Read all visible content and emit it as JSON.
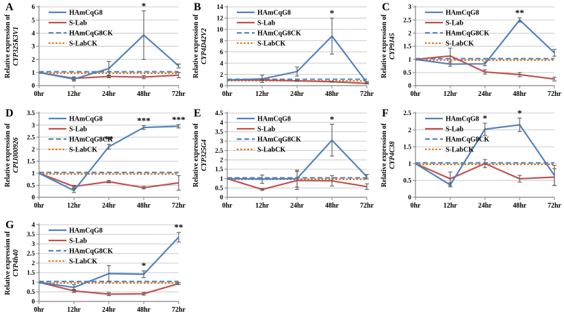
{
  "figure": {
    "categories": [
      "0hr",
      "12hr",
      "24hr",
      "48hr",
      "72hr"
    ],
    "ylabel_prefix": "Relative expression of",
    "legend": [
      {
        "label": "HAmCqG8",
        "color": "#4f81bd",
        "dash": "solid"
      },
      {
        "label": "S-Lab",
        "color": "#c0504d",
        "dash": "solid"
      },
      {
        "label": "HAmCqG8CK",
        "color": "#4f81bd",
        "dash": "dashed"
      },
      {
        "label": "S-LabCK",
        "color": "#e36c0a",
        "dash": "dotted"
      }
    ],
    "colors": {
      "resistant_line": "#4f81bd",
      "susceptible_line": "#c0504d",
      "control_dotted": "#e36c0a",
      "error_bar": "#595959",
      "grid": "#c9c9c9",
      "axis": "#808080",
      "text": "#000000"
    }
  },
  "chart_data": [
    {
      "type": "line",
      "panel": "A",
      "gene": "CYP325K3V1",
      "ylabel": "Relative expression of CYP325K3V1",
      "xlabel": "",
      "ylim": [
        0,
        6
      ],
      "ystep": 1,
      "grid": true,
      "legend_position": "top-left inside",
      "series": [
        {
          "name": "HAmCqG8",
          "values": [
            1,
            0.5,
            1.3,
            3.85,
            1.5
          ],
          "errors": [
            0,
            0.15,
            0.55,
            1.85,
            0.15
          ],
          "sig": [
            "",
            "",
            "",
            "*",
            ""
          ]
        },
        {
          "name": "S-Lab",
          "values": [
            1,
            0.55,
            0.7,
            0.65,
            0.8
          ],
          "errors": [
            0,
            0.12,
            0.1,
            0.12,
            0.2
          ],
          "sig": [
            "",
            "",
            "",
            "",
            ""
          ]
        },
        {
          "name": "HAmCqG8CK",
          "constant": 1
        },
        {
          "name": "S-LabCK",
          "constant": 1
        }
      ]
    },
    {
      "type": "line",
      "panel": "B",
      "gene": "CYP4D42V2",
      "ylabel": "Relative expression of CYP4D42V2",
      "xlabel": "",
      "ylim": [
        0,
        14
      ],
      "ystep": 2,
      "grid": true,
      "legend_position": "top-left inside",
      "series": [
        {
          "name": "HAmCqG8",
          "values": [
            1,
            1.2,
            2.5,
            8.8,
            0.55
          ],
          "errors": [
            0,
            0.65,
            0.8,
            3.2,
            0.2
          ],
          "sig": [
            "",
            "",
            "",
            "*",
            ""
          ]
        },
        {
          "name": "S-Lab",
          "values": [
            1,
            1.0,
            0.85,
            0.7,
            0.4
          ],
          "errors": [
            0,
            0.1,
            0.1,
            0.1,
            0.1
          ],
          "sig": [
            "",
            "",
            "",
            "",
            ""
          ]
        },
        {
          "name": "HAmCqG8CK",
          "constant": 1
        },
        {
          "name": "S-LabCK",
          "constant": 1
        }
      ]
    },
    {
      "type": "line",
      "panel": "C",
      "gene": "CYP9J45",
      "ylabel": "Relative expression of CYP9J45",
      "xlabel": "",
      "ylim": [
        0,
        3
      ],
      "ystep": 0.5,
      "grid": true,
      "legend_position": "top-left inside",
      "series": [
        {
          "name": "HAmCqG8",
          "values": [
            1,
            0.82,
            0.83,
            2.5,
            1.25
          ],
          "errors": [
            0,
            0.08,
            0.07,
            0.08,
            0.13
          ],
          "sig": [
            "",
            "",
            "",
            "**",
            ""
          ]
        },
        {
          "name": "S-Lab",
          "values": [
            1,
            1.13,
            0.52,
            0.42,
            0.25
          ],
          "errors": [
            0,
            0.3,
            0.08,
            0.08,
            0.07
          ],
          "sig": [
            "",
            "",
            "",
            "",
            ""
          ]
        },
        {
          "name": "HAmCqG8CK",
          "constant": 1
        },
        {
          "name": "S-LabCK",
          "constant": 1
        }
      ]
    },
    {
      "type": "line",
      "panel": "D",
      "gene": "CPIJ000926",
      "ylabel": "Relative expression of CPIJ000926",
      "xlabel": "",
      "ylim": [
        0,
        3.5
      ],
      "ystep": 0.5,
      "grid": true,
      "legend_position": "top-left inside",
      "series": [
        {
          "name": "HAmCqG8",
          "values": [
            1,
            0.28,
            2.1,
            2.9,
            2.95
          ],
          "errors": [
            0,
            0.08,
            0.1,
            0.08,
            0.07
          ],
          "sig": [
            "",
            "",
            "**",
            "***",
            "***"
          ]
        },
        {
          "name": "S-Lab",
          "values": [
            1,
            0.45,
            0.65,
            0.4,
            0.6
          ],
          "errors": [
            0,
            0.05,
            0.05,
            0.05,
            0.3
          ],
          "sig": [
            "",
            "",
            "",
            "",
            ""
          ]
        },
        {
          "name": "HAmCqG8CK",
          "constant": 1
        },
        {
          "name": "S-LabCK",
          "constant": 1
        }
      ]
    },
    {
      "type": "line",
      "panel": "E",
      "gene": "CYP325G4",
      "ylabel": "Relative expression of CYP325G4",
      "xlabel": "",
      "ylim": [
        0,
        4.5
      ],
      "ystep": 0.5,
      "grid": true,
      "legend_position": "top-left inside",
      "series": [
        {
          "name": "HAmCqG8",
          "values": [
            1,
            0.97,
            1.0,
            3.05,
            1.1
          ],
          "errors": [
            0,
            0.22,
            0.45,
            0.85,
            0.12
          ],
          "sig": [
            "",
            "",
            "",
            "*",
            ""
          ]
        },
        {
          "name": "S-Lab",
          "values": [
            1,
            0.42,
            0.9,
            0.88,
            0.57
          ],
          "errors": [
            0,
            0.05,
            0.48,
            0.28,
            0.15
          ],
          "sig": [
            "",
            "",
            "",
            "",
            ""
          ]
        },
        {
          "name": "HAmCqG8CK",
          "constant": 1
        },
        {
          "name": "S-LabCK",
          "constant": 1
        }
      ]
    },
    {
      "type": "line",
      "panel": "F",
      "gene": "CYP4C38",
      "ylabel": "Relative expression of CYP4C38",
      "xlabel": "",
      "ylim": [
        0,
        2.5
      ],
      "ystep": 0.5,
      "grid": true,
      "legend_position": "top-left inside",
      "series": [
        {
          "name": "HAmCqG8",
          "values": [
            1,
            0.37,
            2.02,
            2.15,
            0.65
          ],
          "errors": [
            0,
            0.06,
            0.18,
            0.2,
            0.3
          ],
          "sig": [
            "",
            "",
            "*",
            "*",
            ""
          ]
        },
        {
          "name": "S-Lab",
          "values": [
            1,
            0.55,
            1.0,
            0.55,
            0.6
          ],
          "errors": [
            0,
            0.2,
            0.12,
            0.1,
            0.25
          ],
          "sig": [
            "",
            "",
            "",
            "",
            ""
          ]
        },
        {
          "name": "HAmCqG8CK",
          "constant": 1
        },
        {
          "name": "S-LabCK",
          "constant": 1
        }
      ]
    },
    {
      "type": "line",
      "panel": "G",
      "gene": "CYP4h40",
      "ylabel": "Relative expression of CYP4h40",
      "xlabel": "",
      "ylim": [
        0,
        4
      ],
      "ystep": 0.5,
      "grid": true,
      "legend_position": "top-left inside",
      "series": [
        {
          "name": "HAmCqG8",
          "values": [
            1,
            0.73,
            1.45,
            1.42,
            3.35
          ],
          "errors": [
            0,
            0.14,
            0.42,
            0.18,
            0.25
          ],
          "sig": [
            "",
            "",
            "",
            "*",
            "**"
          ]
        },
        {
          "name": "S-Lab",
          "values": [
            1,
            0.55,
            0.38,
            0.4,
            0.93
          ],
          "errors": [
            0,
            0.08,
            0.08,
            0.07,
            0.05
          ],
          "sig": [
            "",
            "",
            "",
            "",
            ""
          ]
        },
        {
          "name": "HAmCqG8CK",
          "constant": 1
        },
        {
          "name": "S-LabCK",
          "constant": 1
        }
      ]
    }
  ]
}
